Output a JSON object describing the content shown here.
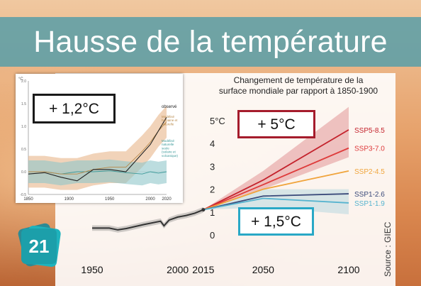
{
  "title": "Hausse de la température",
  "colors": {
    "band": "#60a0a6",
    "ssp585": "#c4222c",
    "ssp370": "#de3b3b",
    "ssp245": "#f0a43c",
    "ssp126": "#3a4a7a",
    "ssp119": "#56b3cf",
    "historical": "#333333",
    "badge5": "#a51c2c",
    "badge15": "#29a8c6"
  },
  "badges": {
    "inset_value": "+ 1,2°C",
    "high_value": "+ 5°C",
    "low_value": "+ 1,5°C"
  },
  "source": "Source : GIEC",
  "card_number": "21",
  "chart_data": [
    {
      "type": "line",
      "title": "Changement de température de la surface mondiale par rapport à 1850-1900",
      "title_lines": [
        "Changement de température de la",
        "surface mondiale par rapport à 1850-1900"
      ],
      "xlabel": "",
      "ylabel": "",
      "xlim": [
        1950,
        2100
      ],
      "ylim": [
        0,
        5
      ],
      "y_unit": "°C",
      "x_ticks": [
        1950,
        2000,
        2015,
        2050,
        2100
      ],
      "x_tick_labels": [
        "1950",
        "2000",
        "2015",
        "2050",
        "2100"
      ],
      "y_ticks": [
        0,
        1,
        2,
        3,
        4,
        5
      ],
      "y_tick_labels": [
        "0",
        "1",
        "2",
        "3",
        "4",
        "5°C"
      ],
      "grid": false,
      "legend": "right-end labels",
      "historical": {
        "x": [
          1950,
          1960,
          1965,
          1970,
          1980,
          1990,
          1992,
          1995,
          2000,
          2005,
          2010,
          2015
        ],
        "y": [
          0.3,
          0.3,
          0.22,
          0.28,
          0.45,
          0.6,
          0.4,
          0.65,
          0.78,
          0.85,
          0.95,
          1.1
        ]
      },
      "series": [
        {
          "name": "SSP5-8.5",
          "x": [
            2015,
            2050,
            2100
          ],
          "y": [
            1.1,
            2.4,
            4.6
          ],
          "band_low": [
            1.1,
            2.0,
            3.4
          ],
          "band_high": [
            1.1,
            2.8,
            5.6
          ]
        },
        {
          "name": "SSP3-7.0",
          "x": [
            2015,
            2050,
            2100
          ],
          "y": [
            1.1,
            2.2,
            3.8
          ]
        },
        {
          "name": "SSP2-4.5",
          "x": [
            2015,
            2050,
            2100
          ],
          "y": [
            1.1,
            2.0,
            2.8
          ]
        },
        {
          "name": "SSP1-2.6",
          "x": [
            2015,
            2050,
            2100
          ],
          "y": [
            1.1,
            1.7,
            1.8
          ]
        },
        {
          "name": "SSP1-1.9",
          "x": [
            2015,
            2050,
            2100
          ],
          "y": [
            1.1,
            1.6,
            1.4
          ],
          "band_low": [
            1.1,
            1.2,
            0.9
          ],
          "band_high": [
            1.1,
            2.0,
            2.0
          ]
        }
      ]
    },
    {
      "type": "line",
      "xlim": [
        1850,
        2020
      ],
      "ylim": [
        -0.5,
        2.0
      ],
      "y_unit": "°C",
      "x_ticks": [
        1850,
        1900,
        1950,
        2000,
        2020
      ],
      "x_tick_labels": [
        "1850",
        "1900",
        "1950",
        "2000",
        "2020"
      ],
      "y_ticks": [
        -0.5,
        0.0,
        0.5,
        1.0,
        1.5,
        2.0
      ],
      "y_tick_labels": [
        "-0.5",
        "0.0",
        "0.5",
        "1.0",
        "1.5",
        "2.0"
      ],
      "legend": "right",
      "series": [
        {
          "name": "observé",
          "label_lines": [
            "observé"
          ],
          "x": [
            1850,
            1870,
            1890,
            1910,
            1930,
            1950,
            1970,
            1990,
            2000,
            2010,
            2020
          ],
          "y": [
            -0.05,
            -0.02,
            -0.12,
            -0.2,
            0.05,
            0.05,
            0.0,
            0.4,
            0.6,
            0.9,
            1.2
          ]
        },
        {
          "name": "Modélisé humaine et naturelle",
          "label_lines": [
            "Modélisé",
            "humaine et",
            "naturelle"
          ],
          "x": [
            1850,
            1870,
            1890,
            1910,
            1930,
            1950,
            1970,
            1990,
            2000,
            2010,
            2020
          ],
          "y": [
            0.0,
            0.0,
            -0.05,
            -0.05,
            0.05,
            0.1,
            0.1,
            0.45,
            0.65,
            0.9,
            1.1
          ],
          "band": 0.35
        },
        {
          "name": "Modélisé naturelle seule (solaire et volcanique)",
          "label_lines": [
            "Modélisé",
            "naturelle",
            "seule",
            "(solaire et",
            "volcanique)"
          ],
          "x": [
            1850,
            1870,
            1890,
            1910,
            1930,
            1950,
            1970,
            1990,
            2000,
            2010,
            2020
          ],
          "y": [
            0.0,
            0.0,
            -0.05,
            0.0,
            0.0,
            0.02,
            -0.02,
            -0.05,
            0.0,
            -0.03,
            0.0
          ],
          "band": 0.25
        }
      ]
    }
  ]
}
